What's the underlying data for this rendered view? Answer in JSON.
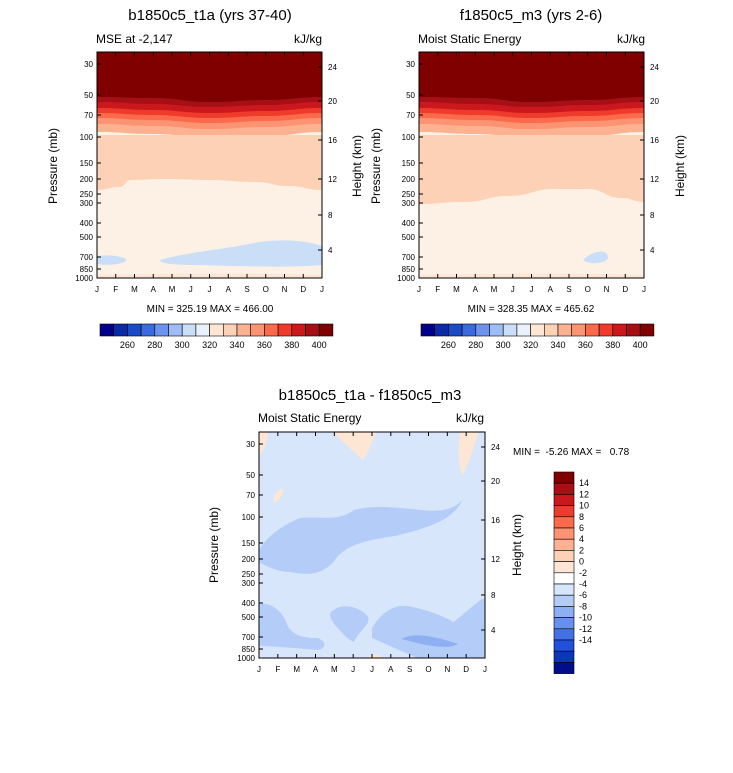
{
  "chart_data": [
    {
      "type": "heatmap",
      "title": "b1850c5_t1a (yrs 37-40)",
      "subtitle_left": "MSE at -2,147",
      "subtitle_right": "kJ/kg",
      "ylabel": "Pressure (mb)",
      "ylabel_right": "Height (km)",
      "x_ticks": [
        "J",
        "F",
        "M",
        "A",
        "M",
        "J",
        "J",
        "A",
        "S",
        "O",
        "N",
        "D",
        "J"
      ],
      "pressure_ticks": [
        "30",
        "50",
        "70",
        "100",
        "150",
        "200",
        "250",
        "300",
        "400",
        "500",
        "700",
        "850",
        "1000"
      ],
      "height_ticks": [
        "24",
        "20",
        "16",
        "12",
        "8",
        "4"
      ],
      "stats": "MIN = 325.19 MAX = 466.00",
      "colorbar_labels": [
        "260",
        "280",
        "300",
        "320",
        "340",
        "360",
        "380",
        "400"
      ],
      "bands": [
        {
          "level": 320,
          "color": "#d7e6fb"
        },
        {
          "level": 330,
          "color": "#fee6d5"
        },
        {
          "level": 340,
          "color": "#fdd1b6"
        },
        {
          "level": 350,
          "color": "#fcb191"
        },
        {
          "level": 360,
          "color": "#fc9372"
        },
        {
          "level": 370,
          "color": "#fb6a4a"
        },
        {
          "level": 380,
          "color": "#ef3b2c"
        },
        {
          "level": 390,
          "color": "#cb181d"
        },
        {
          "level": 400,
          "color": "#a50f15"
        },
        {
          "level": 410,
          "color": "#800000"
        }
      ]
    },
    {
      "type": "heatmap",
      "title": "f1850c5_m3 (yrs 2-6)",
      "subtitle_left": "Moist Static Energy",
      "subtitle_right": "kJ/kg",
      "ylabel": "Pressure (mb)",
      "ylabel_right": "Height (km)",
      "x_ticks": [
        "J",
        "F",
        "M",
        "A",
        "M",
        "J",
        "J",
        "A",
        "S",
        "O",
        "N",
        "D",
        "J"
      ],
      "pressure_ticks": [
        "30",
        "50",
        "70",
        "100",
        "150",
        "200",
        "250",
        "300",
        "400",
        "500",
        "700",
        "850",
        "1000"
      ],
      "height_ticks": [
        "24",
        "20",
        "16",
        "12",
        "8",
        "4"
      ],
      "stats": "MIN = 328.35 MAX = 465.62",
      "colorbar_labels": [
        "260",
        "280",
        "300",
        "320",
        "340",
        "360",
        "380",
        "400"
      ]
    },
    {
      "type": "heatmap",
      "title": "b1850c5_t1a - f1850c5_m3",
      "subtitle_left": "Moist Static Energy",
      "subtitle_right": "kJ/kg",
      "ylabel": "Pressure (mb)",
      "ylabel_right": "Height (km)",
      "x_ticks": [
        "J",
        "F",
        "M",
        "A",
        "M",
        "J",
        "J",
        "A",
        "S",
        "O",
        "N",
        "D",
        "J"
      ],
      "pressure_ticks": [
        "30",
        "50",
        "70",
        "100",
        "150",
        "200",
        "250",
        "300",
        "400",
        "500",
        "700",
        "850",
        "1000"
      ],
      "height_ticks": [
        "24",
        "20",
        "16",
        "12",
        "8",
        "4"
      ],
      "stats": "MIN =  -5.26 MAX =   0.78",
      "colorbar_labels": [
        "14",
        "12",
        "10",
        "8",
        "6",
        "4",
        "2",
        "0",
        "-2",
        "-4",
        "-6",
        "-8",
        "-10",
        "-12",
        "-14"
      ],
      "range": [
        -5.26,
        0.78
      ]
    }
  ],
  "colors": {
    "diverging": [
      "#800000",
      "#a50f15",
      "#cb181d",
      "#ef3b2c",
      "#fb6a4a",
      "#fc9372",
      "#fcb191",
      "#fdd1b6",
      "#fee6d5",
      "#ffffff",
      "#d7e6fb",
      "#b4cdf8",
      "#8eb0f3",
      "#6890ee",
      "#4470e6",
      "#2050dc",
      "#0a37b8",
      "#000e8a"
    ],
    "sequential": [
      "#00008b",
      "#0a2aa8",
      "#1a4ac7",
      "#3a6ae0",
      "#6b93ef",
      "#9dbdf6",
      "#cadef8",
      "#e9f1fb",
      "#fee6d5",
      "#fdd1b6",
      "#fcb191",
      "#fc9372",
      "#fb6a4a",
      "#ef3b2c",
      "#cb181d",
      "#a50f15",
      "#800000"
    ]
  }
}
